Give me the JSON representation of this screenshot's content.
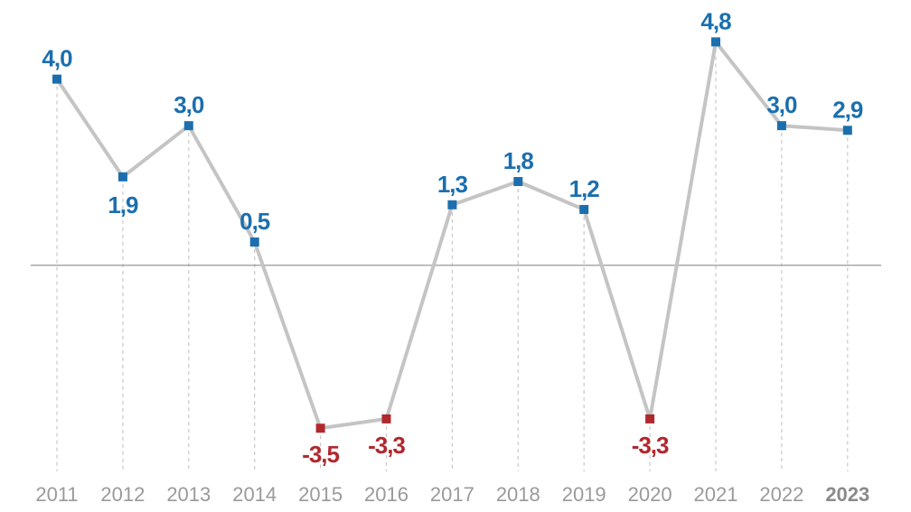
{
  "chart_data": {
    "type": "line",
    "x": [
      "2011",
      "2012",
      "2013",
      "2014",
      "2015",
      "2016",
      "2017",
      "2018",
      "2019",
      "2020",
      "2021",
      "2022",
      "2023"
    ],
    "values": [
      4.0,
      1.9,
      3.0,
      0.5,
      -3.5,
      -3.3,
      1.3,
      1.8,
      1.2,
      -3.3,
      4.8,
      3.0,
      2.9
    ],
    "data_labels": [
      "4,0",
      "1,9",
      "3,0",
      "0,5",
      "-3,5",
      "-3,3",
      "1,3",
      "1,8",
      "1,2",
      "-3,3",
      "4,8",
      "3,0",
      "2,9"
    ],
    "highlighted_category": "2023",
    "ylim": [
      -5.3,
      5.7
    ],
    "title": "",
    "xlabel": "",
    "ylabel": "",
    "grid": "vertical dashed guides per year; solid zero baseline",
    "colors": {
      "line": "#c4c4c4",
      "positive": "#1b6fae",
      "negative": "#b0282e",
      "baseline": "#8c8c8c",
      "guide": "#c8c8c8",
      "tick": "#9a9a9a"
    }
  }
}
